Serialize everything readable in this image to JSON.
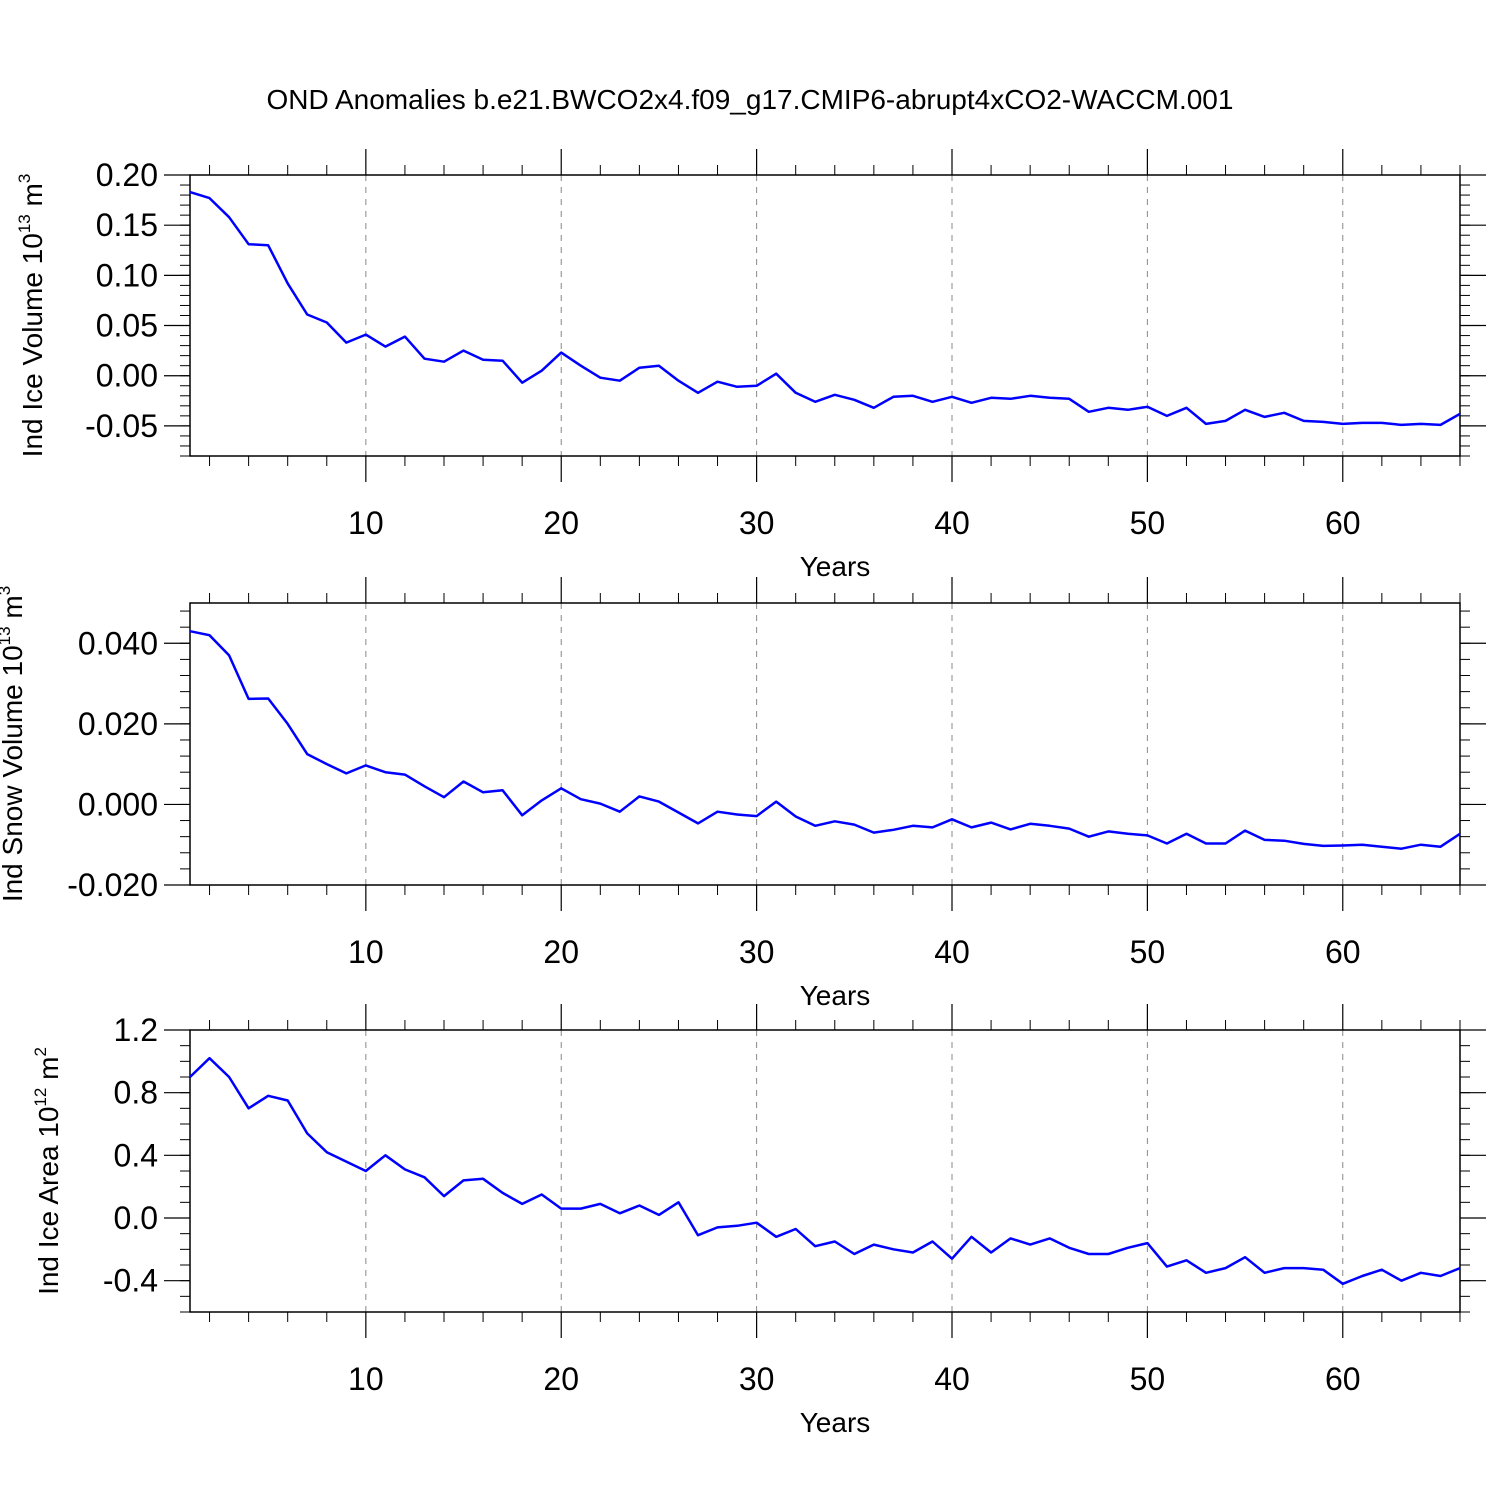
{
  "title": "OND Anomalies b.e21.BWCO2x4.f09_g17.CMIP6-abrupt4xCO2-WACCM.001",
  "colors": {
    "series": "#0000ff",
    "axis": "#000000",
    "grid": "#888888"
  },
  "chart_data": [
    {
      "type": "line",
      "title": "",
      "xlabel": "Years",
      "ylabel_text": "Ind Ice Volume 10",
      "ylabel_exp": "13",
      "ylabel_unit": " m",
      "ylabel_unit_exp": "3",
      "xlim": [
        1,
        66
      ],
      "ylim": [
        -0.08,
        0.2
      ],
      "xticks": [
        10,
        20,
        30,
        40,
        50,
        60
      ],
      "yticks": [
        0.2,
        0.15,
        0.1,
        0.05,
        0.0,
        -0.05
      ],
      "ytick_labels": [
        "0.20",
        "0.15",
        "0.10",
        "0.05",
        "0.00",
        "-0.05"
      ],
      "yminor": 0.01,
      "series": [
        {
          "name": "Ind Ice Volume",
          "x": [
            1,
            2,
            3,
            4,
            5,
            6,
            7,
            8,
            9,
            10,
            11,
            12,
            13,
            14,
            15,
            16,
            17,
            18,
            19,
            20,
            21,
            22,
            23,
            24,
            25,
            26,
            27,
            28,
            29,
            30,
            31,
            32,
            33,
            34,
            35,
            36,
            37,
            38,
            39,
            40,
            41,
            42,
            43,
            44,
            45,
            46,
            47,
            48,
            49,
            50,
            51,
            52,
            53,
            54,
            55,
            56,
            57,
            58,
            59,
            60,
            61,
            62,
            63,
            64,
            65,
            66
          ],
          "values": [
            0.183,
            0.177,
            0.158,
            0.131,
            0.13,
            0.092,
            0.061,
            0.053,
            0.033,
            0.041,
            0.029,
            0.039,
            0.017,
            0.014,
            0.025,
            0.016,
            0.015,
            -0.007,
            0.005,
            0.023,
            0.01,
            -0.002,
            -0.005,
            0.008,
            0.01,
            -0.005,
            -0.017,
            -0.006,
            -0.011,
            -0.01,
            0.002,
            -0.017,
            -0.026,
            -0.019,
            -0.024,
            -0.032,
            -0.021,
            -0.02,
            -0.026,
            -0.021,
            -0.027,
            -0.022,
            -0.023,
            -0.02,
            -0.022,
            -0.023,
            -0.036,
            -0.032,
            -0.034,
            -0.031,
            -0.04,
            -0.032,
            -0.048,
            -0.045,
            -0.034,
            -0.041,
            -0.037,
            -0.045,
            -0.046,
            -0.048,
            -0.047,
            -0.047,
            -0.049,
            -0.048,
            -0.049,
            -0.038
          ]
        }
      ]
    },
    {
      "type": "line",
      "title": "",
      "xlabel": "Years",
      "ylabel_text": "Ind Snow Volume 10",
      "ylabel_exp": "13",
      "ylabel_unit": " m",
      "ylabel_unit_exp": "3",
      "xlim": [
        1,
        66
      ],
      "ylim": [
        -0.02,
        0.05
      ],
      "xticks": [
        10,
        20,
        30,
        40,
        50,
        60
      ],
      "yticks": [
        0.04,
        0.02,
        0.0,
        -0.02
      ],
      "ytick_labels": [
        "0.040",
        "0.020",
        "0.000",
        "-0.020"
      ],
      "yminor": 0.004,
      "series": [
        {
          "name": "Ind Snow Volume",
          "x": [
            1,
            2,
            3,
            4,
            5,
            6,
            7,
            8,
            9,
            10,
            11,
            12,
            13,
            14,
            15,
            16,
            17,
            18,
            19,
            20,
            21,
            22,
            23,
            24,
            25,
            26,
            27,
            28,
            29,
            30,
            31,
            32,
            33,
            34,
            35,
            36,
            37,
            38,
            39,
            40,
            41,
            42,
            43,
            44,
            45,
            46,
            47,
            48,
            49,
            50,
            51,
            52,
            53,
            54,
            55,
            56,
            57,
            58,
            59,
            60,
            61,
            62,
            63,
            64,
            65,
            66
          ],
          "values": [
            0.043,
            0.042,
            0.037,
            0.0262,
            0.0263,
            0.02,
            0.0125,
            0.01,
            0.0077,
            0.0097,
            0.008,
            0.0074,
            0.0045,
            0.0018,
            0.0057,
            0.003,
            0.0035,
            -0.0027,
            0.001,
            0.004,
            0.0013,
            0.0002,
            -0.0018,
            0.002,
            0.0007,
            -0.002,
            -0.0047,
            -0.0018,
            -0.0025,
            -0.0029,
            0.0007,
            -0.003,
            -0.0053,
            -0.0042,
            -0.005,
            -0.007,
            -0.0063,
            -0.0053,
            -0.0057,
            -0.0037,
            -0.0057,
            -0.0045,
            -0.0062,
            -0.0048,
            -0.0053,
            -0.006,
            -0.008,
            -0.0067,
            -0.0073,
            -0.0077,
            -0.0097,
            -0.0073,
            -0.0097,
            -0.0097,
            -0.0065,
            -0.0088,
            -0.009,
            -0.0098,
            -0.0103,
            -0.0102,
            -0.01,
            -0.0105,
            -0.011,
            -0.01,
            -0.0105,
            -0.0073
          ]
        }
      ]
    },
    {
      "type": "line",
      "title": "",
      "xlabel": "Years",
      "ylabel_text": "Ind Ice Area 10",
      "ylabel_exp": "12",
      "ylabel_unit": " m",
      "ylabel_unit_exp": "2",
      "xlim": [
        1,
        66
      ],
      "ylim": [
        -0.6,
        1.2
      ],
      "xticks": [
        10,
        20,
        30,
        40,
        50,
        60
      ],
      "yticks": [
        1.2,
        0.8,
        0.4,
        0.0,
        -0.4
      ],
      "ytick_labels": [
        "1.2",
        "0.8",
        "0.4",
        "0.0",
        "-0.4"
      ],
      "yminor": 0.1,
      "series": [
        {
          "name": "Ind Ice Area",
          "x": [
            1,
            2,
            3,
            4,
            5,
            6,
            7,
            8,
            9,
            10,
            11,
            12,
            13,
            14,
            15,
            16,
            17,
            18,
            19,
            20,
            21,
            22,
            23,
            24,
            25,
            26,
            27,
            28,
            29,
            30,
            31,
            32,
            33,
            34,
            35,
            36,
            37,
            38,
            39,
            40,
            41,
            42,
            43,
            44,
            45,
            46,
            47,
            48,
            49,
            50,
            51,
            52,
            53,
            54,
            55,
            56,
            57,
            58,
            59,
            60,
            61,
            62,
            63,
            64,
            65,
            66
          ],
          "values": [
            0.9,
            1.02,
            0.9,
            0.7,
            0.78,
            0.75,
            0.54,
            0.42,
            0.36,
            0.3,
            0.4,
            0.31,
            0.26,
            0.14,
            0.24,
            0.25,
            0.16,
            0.09,
            0.15,
            0.06,
            0.06,
            0.09,
            0.03,
            0.08,
            0.02,
            0.1,
            -0.11,
            -0.06,
            -0.05,
            -0.03,
            -0.12,
            -0.07,
            -0.18,
            -0.15,
            -0.23,
            -0.17,
            -0.2,
            -0.22,
            -0.15,
            -0.26,
            -0.12,
            -0.22,
            -0.13,
            -0.17,
            -0.13,
            -0.19,
            -0.23,
            -0.23,
            -0.19,
            -0.16,
            -0.31,
            -0.27,
            -0.35,
            -0.32,
            -0.25,
            -0.35,
            -0.32,
            -0.32,
            -0.33,
            -0.42,
            -0.37,
            -0.33,
            -0.4,
            -0.35,
            -0.37,
            -0.32
          ]
        }
      ]
    }
  ]
}
